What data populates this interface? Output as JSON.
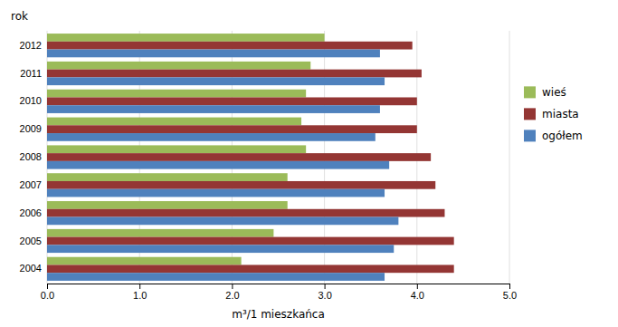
{
  "chart_data": {
    "type": "bar",
    "orientation": "horizontal",
    "categories": [
      "2012",
      "2011",
      "2010",
      "2009",
      "2008",
      "2007",
      "2006",
      "2005",
      "2004"
    ],
    "series": [
      {
        "name": "wieś",
        "color": "#9BBB59",
        "values": [
          3.0,
          2.85,
          2.8,
          2.75,
          2.8,
          2.6,
          2.6,
          2.45,
          2.1
        ]
      },
      {
        "name": "miasta",
        "color": "#943634",
        "values": [
          3.95,
          4.05,
          4.0,
          4.0,
          4.15,
          4.2,
          4.3,
          4.4,
          4.4
        ]
      },
      {
        "name": "ogółem",
        "color": "#4F81BD",
        "values": [
          3.6,
          3.65,
          3.6,
          3.55,
          3.7,
          3.65,
          3.8,
          3.75,
          3.65
        ]
      }
    ],
    "xlabel": "m³/1 mieszkańca",
    "ylabel": "rok",
    "xlim": [
      0.0,
      5.0
    ],
    "xticks": [
      {
        "value": 0.0,
        "label": "0.0"
      },
      {
        "value": 1.0,
        "label": "1.0"
      },
      {
        "value": 2.0,
        "label": "2.0"
      },
      {
        "value": 3.0,
        "label": "3.0"
      },
      {
        "value": 4.0,
        "label": "4.0"
      },
      {
        "value": 5.0,
        "label": "5.0"
      }
    ],
    "grid": true,
    "legend": "right"
  }
}
